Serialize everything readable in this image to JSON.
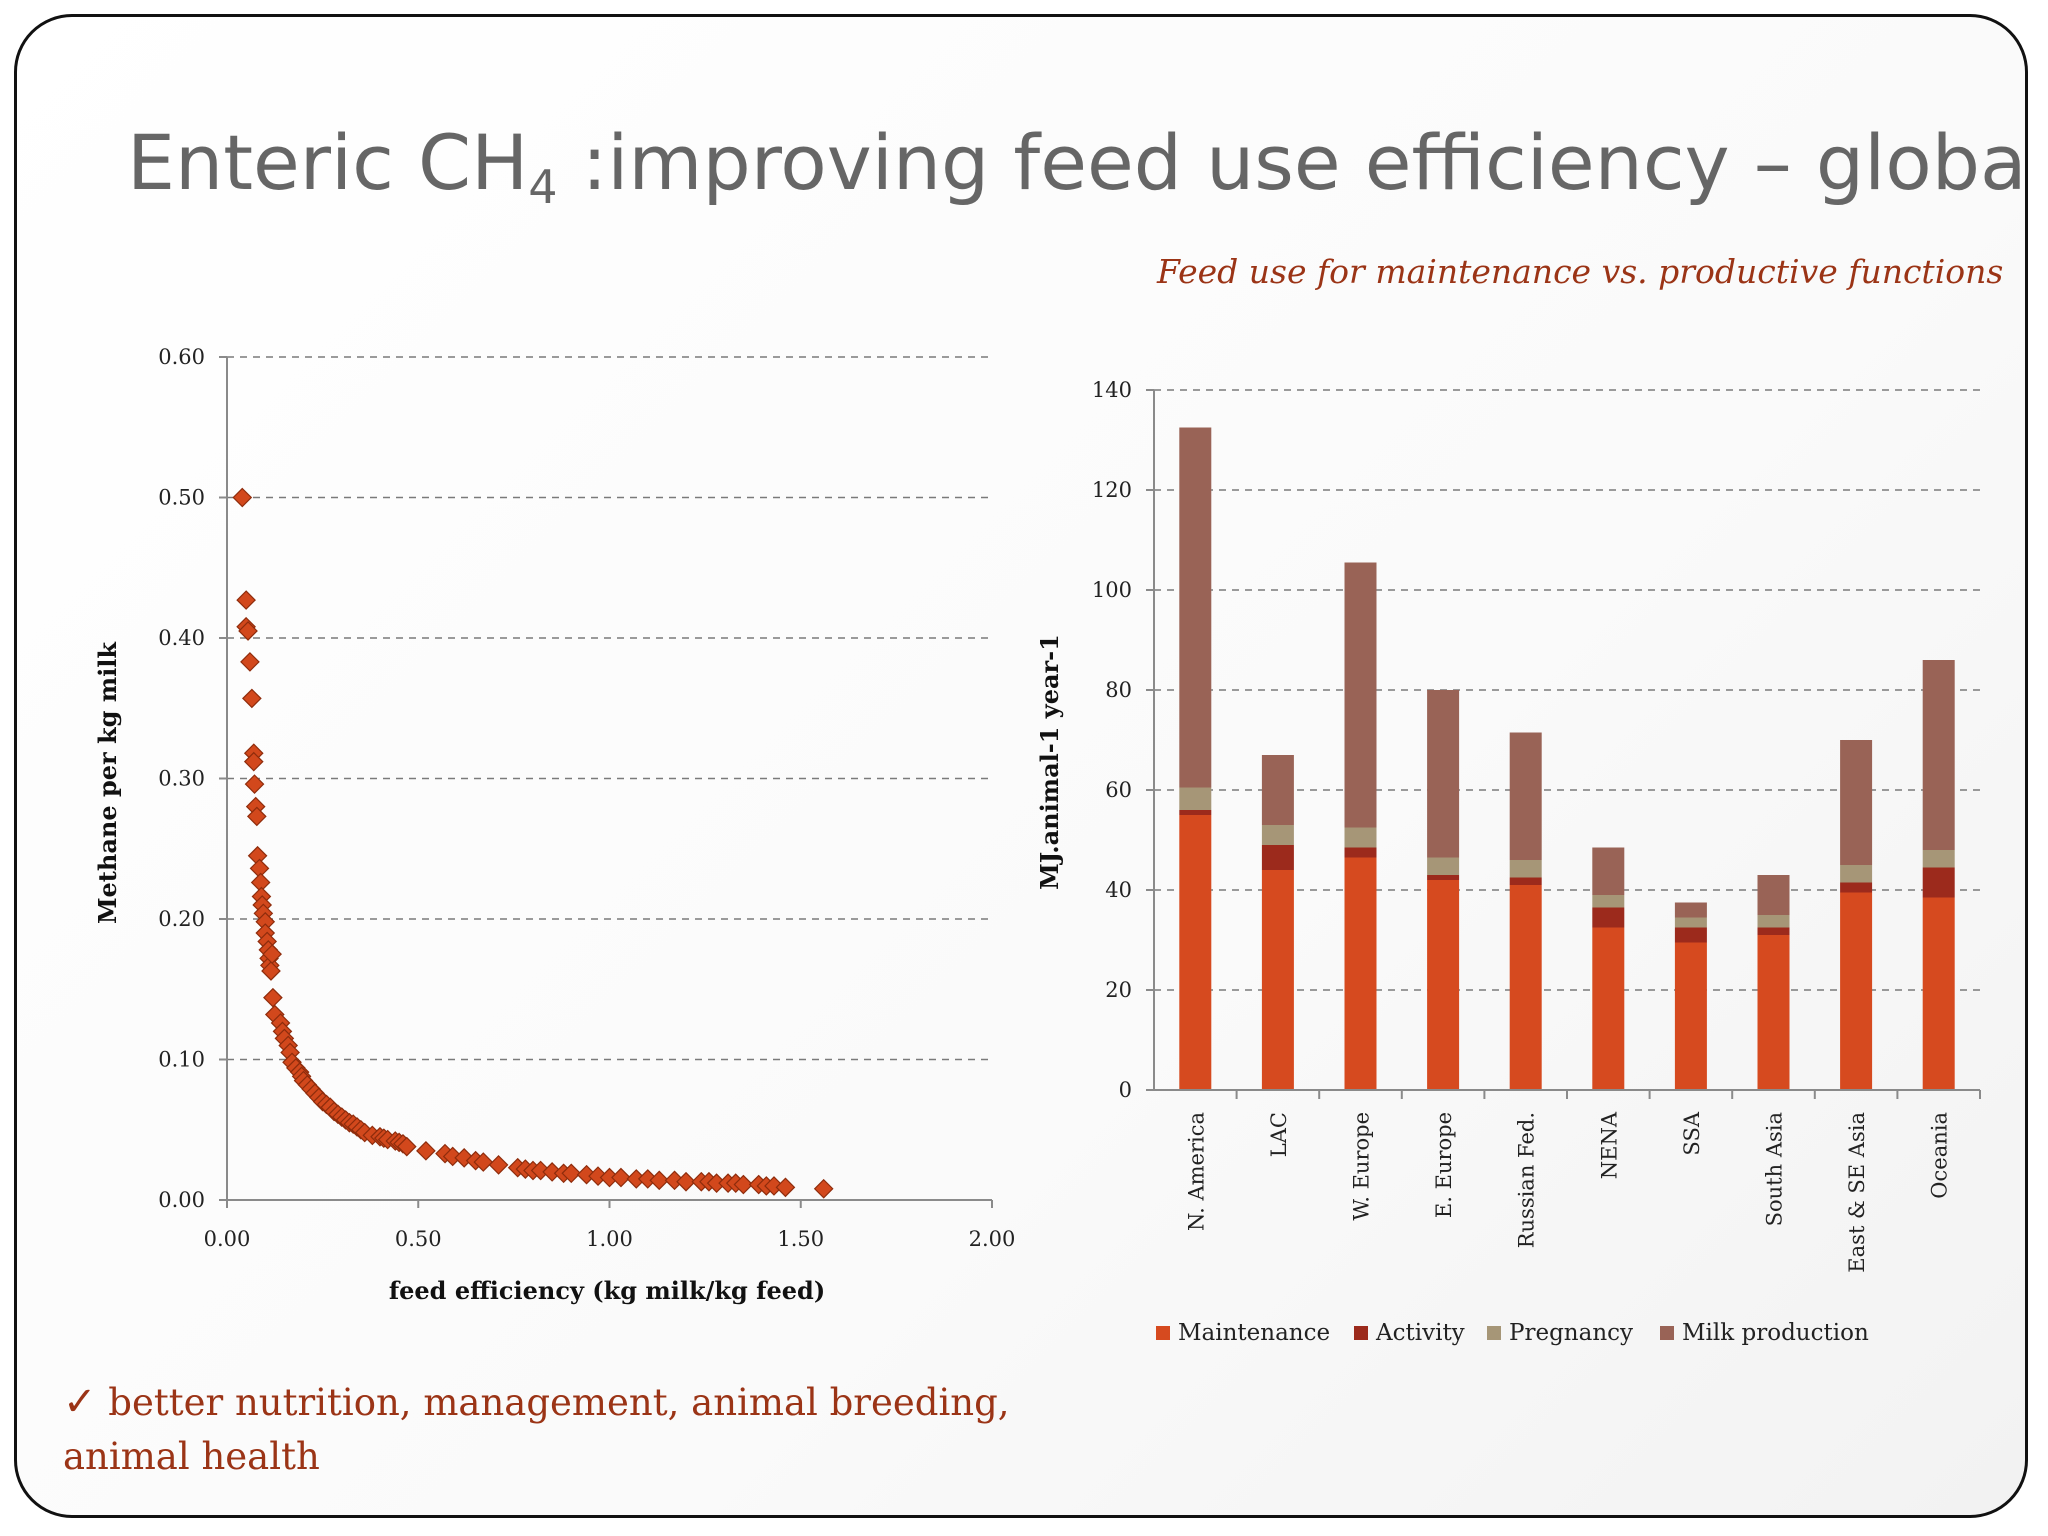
{
  "slide": {
    "title_main": "Enteric CH",
    "title_sub": "4",
    "title_rest": " :improving feed use efficiency – global",
    "bar_subtitle": "Feed use for maintenance vs. productive functions",
    "bullet_check": "✓",
    "bullet_text": " better nutrition, management, animal breeding, animal health"
  },
  "colors": {
    "accent_text": "#9b3416",
    "marker_fill": "#d2481c",
    "marker_stroke": "#8e2c0c",
    "maintenance": "#d64a1f",
    "activity": "#9c2a1c",
    "pregnancy": "#a69677",
    "milk": "#996356"
  },
  "chart_data": [
    {
      "type": "scatter",
      "title": "",
      "xlabel": "feed efficiency (kg milk/kg feed)",
      "ylabel": "Methane per kg milk",
      "xlim": [
        0,
        2
      ],
      "ylim": [
        0,
        0.6
      ],
      "x_ticks": [
        "0.00",
        "0.50",
        "1.00",
        "1.50",
        "2.00"
      ],
      "y_ticks": [
        "0.00",
        "0.10",
        "0.20",
        "0.30",
        "0.40",
        "0.50",
        "0.60"
      ],
      "grid": "horizontal dashed",
      "marker": "diamond",
      "x": [
        0.04,
        0.05,
        0.05,
        0.055,
        0.06,
        0.065,
        0.07,
        0.07,
        0.072,
        0.075,
        0.078,
        0.08,
        0.085,
        0.088,
        0.09,
        0.092,
        0.095,
        0.1,
        0.1,
        0.105,
        0.108,
        0.11,
        0.112,
        0.115,
        0.118,
        0.12,
        0.125,
        0.14,
        0.145,
        0.15,
        0.16,
        0.165,
        0.17,
        0.18,
        0.19,
        0.195,
        0.2,
        0.21,
        0.22,
        0.23,
        0.24,
        0.25,
        0.26,
        0.27,
        0.28,
        0.29,
        0.3,
        0.31,
        0.32,
        0.33,
        0.34,
        0.35,
        0.36,
        0.38,
        0.4,
        0.41,
        0.42,
        0.44,
        0.45,
        0.46,
        0.47,
        0.52,
        0.57,
        0.59,
        0.62,
        0.65,
        0.67,
        0.71,
        0.76,
        0.78,
        0.8,
        0.82,
        0.85,
        0.88,
        0.9,
        0.94,
        0.97,
        1.0,
        1.03,
        1.07,
        1.1,
        1.13,
        1.17,
        1.2,
        1.24,
        1.26,
        1.28,
        1.31,
        1.33,
        1.35,
        1.39,
        1.41,
        1.43,
        1.46,
        1.56
      ],
      "y": [
        0.5,
        0.427,
        0.408,
        0.405,
        0.383,
        0.357,
        0.318,
        0.312,
        0.296,
        0.28,
        0.273,
        0.245,
        0.236,
        0.226,
        0.216,
        0.21,
        0.204,
        0.198,
        0.19,
        0.184,
        0.178,
        0.172,
        0.167,
        0.163,
        0.175,
        0.144,
        0.132,
        0.126,
        0.12,
        0.115,
        0.11,
        0.105,
        0.098,
        0.094,
        0.091,
        0.088,
        0.085,
        0.082,
        0.079,
        0.076,
        0.073,
        0.07,
        0.068,
        0.066,
        0.063,
        0.061,
        0.059,
        0.057,
        0.055,
        0.054,
        0.052,
        0.05,
        0.048,
        0.046,
        0.045,
        0.044,
        0.043,
        0.042,
        0.041,
        0.04,
        0.038,
        0.035,
        0.033,
        0.031,
        0.03,
        0.028,
        0.027,
        0.025,
        0.023,
        0.022,
        0.021,
        0.021,
        0.02,
        0.019,
        0.019,
        0.018,
        0.017,
        0.016,
        0.016,
        0.015,
        0.015,
        0.014,
        0.014,
        0.013,
        0.013,
        0.013,
        0.012,
        0.012,
        0.012,
        0.011,
        0.011,
        0.01,
        0.01,
        0.009,
        0.008
      ]
    },
    {
      "type": "bar",
      "stacked": true,
      "title": "Feed use for maintenance vs. productive functions",
      "xlabel": "",
      "ylabel": "MJ.animal-1 year-1",
      "ylim": [
        0,
        140
      ],
      "y_ticks": [
        "0",
        "20",
        "40",
        "60",
        "80",
        "100",
        "120",
        "140"
      ],
      "grid": "horizontal dashed",
      "legend_position": "bottom",
      "categories": [
        "N. America",
        "LAC",
        "W. Europe",
        "E. Europe",
        "Russian Fed.",
        "NENA",
        "SSA",
        "South Asia",
        "East & SE Asia",
        "Oceania"
      ],
      "series": [
        {
          "name": "Maintenance",
          "values": [
            55,
            44,
            46.5,
            42,
            41,
            32.5,
            29.5,
            31,
            39.5,
            38.5
          ]
        },
        {
          "name": "Activity",
          "values": [
            1,
            5,
            2,
            1,
            1.5,
            4,
            3,
            1.5,
            2,
            6
          ]
        },
        {
          "name": "Pregnancy",
          "values": [
            4.5,
            4,
            4,
            3.5,
            3.5,
            2.5,
            2,
            2.5,
            3.5,
            3.5
          ]
        },
        {
          "name": "Milk production",
          "values": [
            72,
            14,
            53,
            33.5,
            25.5,
            9.5,
            3,
            8,
            25,
            38
          ]
        }
      ]
    }
  ]
}
